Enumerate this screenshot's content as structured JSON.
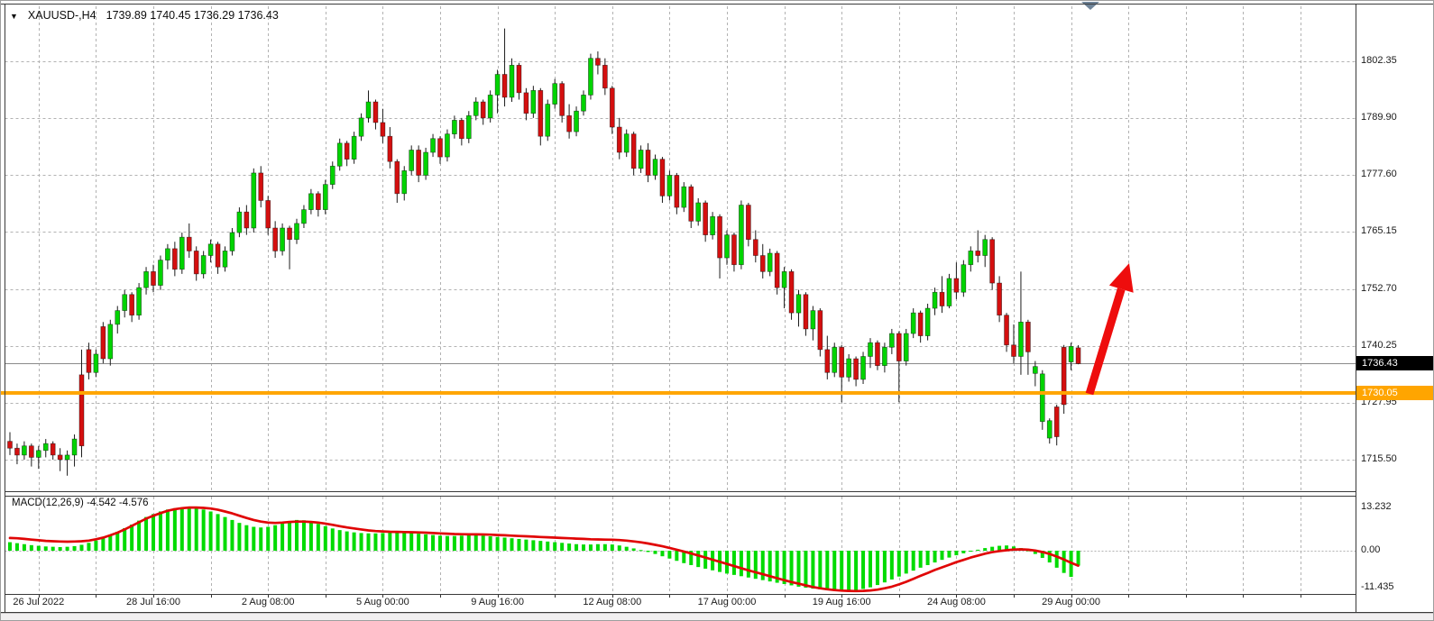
{
  "title": {
    "dropdown_icon": "▼",
    "symbol": "XAUUSD-,H4",
    "ohlc": "1739.89 1740.45 1736.29 1736.43"
  },
  "price_axis": {
    "labels": [
      "1802.35",
      "1789.90",
      "1777.60",
      "1765.15",
      "1752.70",
      "1740.25",
      "1727.95",
      "1715.50"
    ],
    "current_price_badge": "1736.43",
    "hline_badge": "1730.05"
  },
  "macd_panel": {
    "label": "MACD(12,26,9)",
    "values": "-4.542 -4.576",
    "axis_labels": [
      "13.232",
      "0.00",
      "-11.435"
    ]
  },
  "date_axis": {
    "labels": [
      {
        "text": "26 Jul 2022",
        "index": 4
      },
      {
        "text": "28 Jul 16:00",
        "index": 20
      },
      {
        "text": "2 Aug 08:00",
        "index": 36
      },
      {
        "text": "5 Aug 00:00",
        "index": 52
      },
      {
        "text": "9 Aug 16:00",
        "index": 68
      },
      {
        "text": "12 Aug 08:00",
        "index": 84
      },
      {
        "text": "17 Aug 00:00",
        "index": 100
      },
      {
        "text": "19 Aug 16:00",
        "index": 116
      },
      {
        "text": "24 Aug 08:00",
        "index": 132
      },
      {
        "text": "29 Aug 00:00",
        "index": 148
      }
    ]
  },
  "colors": {
    "bull": "#00D400",
    "bear": "#D40F0F",
    "wick": "#1c1c1c",
    "grid": "#b2b2b2",
    "border": "#3a3a3a",
    "orange_line": "#FFA500",
    "current_line": "#8a8a8a",
    "macd_hist": "#00DB00",
    "macd_signal": "#E00505",
    "arrow": "#EE0D0D",
    "shift_marker": "#6e8398",
    "badge_current_bg": "#000000",
    "badge_hline_bg": "#FFA500"
  },
  "chart_data": {
    "type": "candlestick",
    "symbol": "XAUUSD-",
    "timeframe": "H4",
    "title": "XAUUSD-,H4",
    "ohlc_current": {
      "open": 1739.89,
      "high": 1740.45,
      "low": 1736.29,
      "close": 1736.43
    },
    "price_gridlines": [
      1802.35,
      1789.9,
      1777.6,
      1765.15,
      1752.7,
      1740.25,
      1727.95,
      1715.5
    ],
    "horizontal_line": 1730.05,
    "current_price": 1736.43,
    "x_tick_step_bars": 8,
    "legend_position": "none",
    "candles": [
      [
        1719.5,
        1721.5,
        1716.5,
        1718.0
      ],
      [
        1718.0,
        1719.0,
        1714.5,
        1716.5
      ],
      [
        1716.5,
        1719.5,
        1715.5,
        1718.5
      ],
      [
        1718.5,
        1719.0,
        1714.0,
        1716.0
      ],
      [
        1716.0,
        1718.5,
        1713.5,
        1717.5
      ],
      [
        1717.5,
        1720.0,
        1716.0,
        1719.0
      ],
      [
        1719.0,
        1719.5,
        1715.5,
        1716.5
      ],
      [
        1716.5,
        1718.0,
        1713.0,
        1715.5
      ],
      [
        1715.5,
        1717.5,
        1712.0,
        1716.5
      ],
      [
        1716.5,
        1721.0,
        1714.0,
        1720.0
      ],
      [
        1734.0,
        1739.5,
        1716.0,
        1718.5
      ],
      [
        1739.5,
        1741.0,
        1733.0,
        1734.5
      ],
      [
        1734.5,
        1739.5,
        1733.5,
        1738.5
      ],
      [
        1744.5,
        1745.5,
        1736.5,
        1737.5
      ],
      [
        1737.5,
        1746.0,
        1736.0,
        1745.0
      ],
      [
        1745.0,
        1749.0,
        1743.0,
        1748.0
      ],
      [
        1748.0,
        1752.5,
        1746.5,
        1751.5
      ],
      [
        1751.5,
        1752.0,
        1745.5,
        1747.0
      ],
      [
        1747.0,
        1754.0,
        1746.0,
        1753.0
      ],
      [
        1753.0,
        1757.5,
        1751.5,
        1756.5
      ],
      [
        1756.5,
        1758.0,
        1752.0,
        1753.5
      ],
      [
        1753.5,
        1760.0,
        1752.5,
        1759.0
      ],
      [
        1759.0,
        1762.5,
        1757.0,
        1761.5
      ],
      [
        1761.5,
        1763.0,
        1755.5,
        1757.0
      ],
      [
        1757.0,
        1765.0,
        1756.0,
        1764.0
      ],
      [
        1764.0,
        1767.0,
        1759.5,
        1761.0
      ],
      [
        1761.0,
        1762.0,
        1754.5,
        1756.0
      ],
      [
        1756.0,
        1761.0,
        1755.0,
        1760.0
      ],
      [
        1760.0,
        1763.5,
        1758.5,
        1762.5
      ],
      [
        1762.5,
        1763.0,
        1756.0,
        1757.5
      ],
      [
        1757.5,
        1762.0,
        1756.5,
        1761.0
      ],
      [
        1761.0,
        1766.0,
        1760.0,
        1765.0
      ],
      [
        1765.0,
        1770.5,
        1764.0,
        1769.5
      ],
      [
        1769.5,
        1771.0,
        1764.5,
        1766.0
      ],
      [
        1766.0,
        1779.0,
        1765.0,
        1778.0
      ],
      [
        1778.0,
        1779.5,
        1770.5,
        1772.0
      ],
      [
        1772.0,
        1773.0,
        1764.5,
        1766.0
      ],
      [
        1766.0,
        1767.5,
        1759.5,
        1761.0
      ],
      [
        1761.0,
        1767.0,
        1760.0,
        1766.0
      ],
      [
        1766.0,
        1766.5,
        1757.0,
        1763.5
      ],
      [
        1763.5,
        1768.0,
        1762.5,
        1767.0
      ],
      [
        1767.0,
        1771.0,
        1766.0,
        1770.0
      ],
      [
        1770.0,
        1774.5,
        1769.0,
        1773.5
      ],
      [
        1773.5,
        1774.0,
        1768.5,
        1770.0
      ],
      [
        1770.0,
        1776.5,
        1769.0,
        1775.5
      ],
      [
        1775.5,
        1780.5,
        1774.5,
        1779.5
      ],
      [
        1779.5,
        1785.5,
        1778.5,
        1784.5
      ],
      [
        1784.5,
        1785.0,
        1779.5,
        1781.0
      ],
      [
        1781.0,
        1787.0,
        1780.0,
        1786.0
      ],
      [
        1786.0,
        1791.0,
        1785.0,
        1790.0
      ],
      [
        1790.0,
        1796.0,
        1789.0,
        1793.5
      ],
      [
        1793.5,
        1794.0,
        1787.5,
        1789.0
      ],
      [
        1789.0,
        1792.0,
        1784.5,
        1786.0
      ],
      [
        1786.0,
        1788.0,
        1779.0,
        1780.5
      ],
      [
        1780.5,
        1781.0,
        1771.5,
        1773.5
      ],
      [
        1773.5,
        1779.5,
        1772.0,
        1778.5
      ],
      [
        1778.5,
        1784.0,
        1777.5,
        1783.0
      ],
      [
        1783.0,
        1784.0,
        1776.0,
        1777.5
      ],
      [
        1777.5,
        1783.5,
        1776.5,
        1782.5
      ],
      [
        1782.5,
        1786.5,
        1781.5,
        1785.5
      ],
      [
        1785.5,
        1786.0,
        1780.0,
        1781.5
      ],
      [
        1781.5,
        1787.5,
        1780.5,
        1786.5
      ],
      [
        1786.5,
        1790.5,
        1785.5,
        1789.5
      ],
      [
        1789.5,
        1790.0,
        1784.0,
        1785.5
      ],
      [
        1785.5,
        1791.5,
        1784.5,
        1790.5
      ],
      [
        1790.5,
        1794.5,
        1789.5,
        1793.5
      ],
      [
        1793.5,
        1794.0,
        1788.5,
        1790.0
      ],
      [
        1790.0,
        1796.0,
        1789.0,
        1795.0
      ],
      [
        1795.0,
        1800.5,
        1791.0,
        1799.5
      ],
      [
        1799.5,
        1809.5,
        1792.5,
        1794.5
      ],
      [
        1794.5,
        1803.0,
        1793.5,
        1801.5
      ],
      [
        1801.5,
        1802.0,
        1794.0,
        1795.5
      ],
      [
        1795.5,
        1796.5,
        1789.5,
        1791.0
      ],
      [
        1791.0,
        1797.0,
        1790.0,
        1796.0
      ],
      [
        1796.0,
        1796.5,
        1784.0,
        1786.0
      ],
      [
        1786.0,
        1794.0,
        1785.0,
        1793.0
      ],
      [
        1793.0,
        1798.5,
        1792.0,
        1797.5
      ],
      [
        1797.5,
        1798.0,
        1789.0,
        1790.5
      ],
      [
        1790.5,
        1793.0,
        1785.5,
        1787.0
      ],
      [
        1787.0,
        1792.5,
        1786.0,
        1791.5
      ],
      [
        1791.5,
        1796.0,
        1790.5,
        1795.0
      ],
      [
        1795.0,
        1804.0,
        1794.0,
        1803.0
      ],
      [
        1803.0,
        1804.5,
        1799.5,
        1801.5
      ],
      [
        1801.5,
        1803.0,
        1795.0,
        1796.5
      ],
      [
        1796.5,
        1797.0,
        1786.5,
        1788.0
      ],
      [
        1788.0,
        1790.0,
        1781.0,
        1782.5
      ],
      [
        1782.5,
        1787.5,
        1781.5,
        1786.5
      ],
      [
        1786.5,
        1787.0,
        1777.5,
        1779.0
      ],
      [
        1779.0,
        1784.0,
        1778.0,
        1783.0
      ],
      [
        1783.0,
        1784.5,
        1776.0,
        1777.5
      ],
      [
        1777.5,
        1782.0,
        1776.5,
        1781.0
      ],
      [
        1781.0,
        1781.5,
        1771.5,
        1773.0
      ],
      [
        1773.0,
        1778.5,
        1772.0,
        1777.5
      ],
      [
        1777.5,
        1778.0,
        1769.0,
        1770.5
      ],
      [
        1770.5,
        1776.0,
        1769.5,
        1775.0
      ],
      [
        1775.0,
        1775.5,
        1766.0,
        1767.5
      ],
      [
        1767.5,
        1772.5,
        1766.5,
        1771.5
      ],
      [
        1771.5,
        1772.0,
        1763.0,
        1764.5
      ],
      [
        1764.5,
        1769.5,
        1763.5,
        1768.5
      ],
      [
        1768.5,
        1769.0,
        1755.0,
        1759.5
      ],
      [
        1759.5,
        1765.5,
        1758.0,
        1764.5
      ],
      [
        1764.5,
        1765.0,
        1756.5,
        1758.0
      ],
      [
        1758.0,
        1772.0,
        1757.0,
        1771.0
      ],
      [
        1771.0,
        1771.5,
        1762.0,
        1763.5
      ],
      [
        1763.5,
        1765.5,
        1758.5,
        1760.0
      ],
      [
        1760.0,
        1762.5,
        1755.0,
        1756.5
      ],
      [
        1756.5,
        1761.5,
        1755.5,
        1760.5
      ],
      [
        1760.5,
        1761.0,
        1751.5,
        1753.0
      ],
      [
        1753.0,
        1757.5,
        1748.5,
        1756.5
      ],
      [
        1756.5,
        1757.0,
        1746.0,
        1747.5
      ],
      [
        1747.5,
        1752.5,
        1744.5,
        1751.5
      ],
      [
        1751.5,
        1752.0,
        1742.5,
        1744.0
      ],
      [
        1744.0,
        1749.0,
        1741.5,
        1748.0
      ],
      [
        1748.0,
        1748.5,
        1738.0,
        1739.5
      ],
      [
        1739.5,
        1742.5,
        1733.0,
        1734.5
      ],
      [
        1734.5,
        1741.0,
        1733.5,
        1740.0
      ],
      [
        1740.0,
        1740.5,
        1728.0,
        1733.5
      ],
      [
        1733.5,
        1738.5,
        1732.5,
        1737.5
      ],
      [
        1737.5,
        1738.0,
        1731.5,
        1733.0
      ],
      [
        1733.0,
        1739.0,
        1732.0,
        1738.0
      ],
      [
        1738.0,
        1742.0,
        1735.5,
        1741.0
      ],
      [
        1741.0,
        1741.5,
        1735.0,
        1736.0
      ],
      [
        1736.0,
        1741.0,
        1734.5,
        1740.0
      ],
      [
        1740.0,
        1744.0,
        1738.5,
        1743.0
      ],
      [
        1743.0,
        1743.5,
        1728.0,
        1737.0
      ],
      [
        1737.0,
        1744.0,
        1736.0,
        1743.0
      ],
      [
        1743.0,
        1748.5,
        1742.0,
        1747.5
      ],
      [
        1747.5,
        1748.0,
        1741.0,
        1742.5
      ],
      [
        1742.5,
        1749.5,
        1741.5,
        1748.5
      ],
      [
        1748.5,
        1753.0,
        1747.0,
        1752.0
      ],
      [
        1752.0,
        1755.5,
        1747.5,
        1749.0
      ],
      [
        1749.0,
        1756.0,
        1748.5,
        1755.0
      ],
      [
        1755.0,
        1758.5,
        1750.5,
        1752.0
      ],
      [
        1752.0,
        1759.0,
        1751.0,
        1758.0
      ],
      [
        1758.0,
        1762.0,
        1756.5,
        1761.0
      ],
      [
        1761.0,
        1765.5,
        1758.5,
        1760.0
      ],
      [
        1760.0,
        1764.5,
        1757.5,
        1763.5
      ],
      [
        1763.5,
        1764.0,
        1752.5,
        1754.0
      ],
      [
        1754.0,
        1755.5,
        1745.5,
        1747.0
      ],
      [
        1747.0,
        1747.5,
        1739.0,
        1740.5
      ],
      [
        1740.5,
        1745.0,
        1736.5,
        1738.0
      ],
      [
        1738.0,
        1756.5,
        1734.0,
        1745.5
      ],
      [
        1745.5,
        1746.0,
        1734.0,
        1739.0
      ],
      [
        1734.3,
        1737.0,
        1731.5,
        1735.8
      ],
      [
        1723.8,
        1735.0,
        1722.0,
        1734.2
      ],
      [
        1720.2,
        1724.5,
        1719.0,
        1724.0
      ],
      [
        1727.0,
        1727.5,
        1718.6,
        1720.5
      ],
      [
        1740.0,
        1740.5,
        1725.5,
        1727.5
      ],
      [
        1736.8,
        1741.0,
        1735.0,
        1740.2
      ],
      [
        1739.89,
        1740.45,
        1736.29,
        1736.43
      ]
    ],
    "macd": {
      "params": [
        12,
        26,
        9
      ],
      "main_value": -4.542,
      "signal_value": -4.576,
      "axis": [
        13.232,
        0.0,
        -11.435
      ],
      "histogram": [
        2.6,
        2.3,
        2.0,
        1.7,
        1.5,
        1.3,
        1.2,
        1.1,
        1.2,
        1.4,
        1.8,
        2.4,
        3.1,
        3.9,
        4.8,
        5.8,
        6.9,
        8.0,
        9.2,
        10.3,
        11.2,
        12.0,
        12.6,
        13.0,
        13.2,
        13.2,
        13.0,
        12.6,
        12.0,
        11.2,
        10.3,
        9.4,
        8.5,
        7.8,
        7.3,
        7.1,
        7.3,
        7.8,
        8.5,
        9.1,
        9.4,
        9.3,
        8.9,
        8.2,
        7.5,
        6.8,
        6.3,
        5.9,
        5.6,
        5.4,
        5.3,
        5.3,
        5.4,
        5.5,
        5.6,
        5.5,
        5.4,
        5.2,
        5.0,
        4.8,
        4.6,
        4.5,
        4.5,
        4.6,
        4.7,
        4.7,
        4.6,
        4.4,
        4.2,
        4.0,
        3.8,
        3.6,
        3.4,
        3.2,
        3.0,
        2.8,
        2.6,
        2.4,
        2.2,
        2.0,
        1.9,
        1.9,
        2.0,
        2.0,
        1.9,
        1.6,
        1.2,
        0.7,
        0.2,
        -0.4,
        -1.0,
        -1.7,
        -2.4,
        -3.1,
        -3.8,
        -4.4,
        -5.0,
        -5.5,
        -6.0,
        -6.5,
        -7.0,
        -7.4,
        -7.8,
        -8.2,
        -8.6,
        -9.0,
        -9.4,
        -9.8,
        -10.2,
        -10.6,
        -11.0,
        -11.3,
        -11.6,
        -11.8,
        -12.0,
        -12.1,
        -12.2,
        -12.1,
        -12.0,
        -11.7,
        -11.2,
        -10.5,
        -9.7,
        -8.8,
        -7.9,
        -7.0,
        -6.1,
        -5.2,
        -4.4,
        -3.6,
        -2.8,
        -2.1,
        -1.4,
        -0.8,
        -0.2,
        0.3,
        0.8,
        1.2,
        1.5,
        1.6,
        1.3,
        0.8,
        0.1,
        -1.0,
        -2.2,
        -3.6,
        -5.2,
        -6.8,
        -8.0,
        -4.54
      ],
      "signal": [
        3.9,
        3.8,
        3.6,
        3.4,
        3.2,
        3.0,
        2.9,
        2.8,
        2.75,
        2.8,
        2.9,
        3.1,
        3.5,
        4.0,
        4.7,
        5.5,
        6.5,
        7.6,
        8.7,
        9.8,
        10.7,
        11.5,
        12.2,
        12.7,
        13.0,
        13.2,
        13.2,
        13.1,
        12.9,
        12.5,
        12.0,
        11.4,
        10.7,
        10.0,
        9.4,
        8.9,
        8.6,
        8.5,
        8.6,
        8.8,
        8.9,
        8.9,
        8.8,
        8.6,
        8.3,
        7.9,
        7.5,
        7.1,
        6.8,
        6.5,
        6.2,
        6.0,
        5.9,
        5.8,
        5.75,
        5.7,
        5.65,
        5.6,
        5.5,
        5.4,
        5.3,
        5.2,
        5.1,
        5.05,
        5.0,
        5.0,
        4.95,
        4.9,
        4.8,
        4.7,
        4.6,
        4.5,
        4.4,
        4.3,
        4.2,
        4.1,
        4.0,
        3.9,
        3.8,
        3.7,
        3.6,
        3.5,
        3.45,
        3.4,
        3.35,
        3.25,
        3.1,
        2.85,
        2.55,
        2.2,
        1.8,
        1.35,
        0.85,
        0.3,
        -0.25,
        -0.85,
        -1.45,
        -2.1,
        -2.75,
        -3.4,
        -4.05,
        -4.7,
        -5.35,
        -6.0,
        -6.6,
        -7.2,
        -7.8,
        -8.4,
        -9.0,
        -9.6,
        -10.1,
        -10.6,
        -11.1,
        -11.5,
        -11.8,
        -12.05,
        -12.2,
        -12.3,
        -12.35,
        -12.3,
        -12.15,
        -11.9,
        -11.5,
        -11.0,
        -10.3,
        -9.5,
        -8.6,
        -7.7,
        -6.8,
        -5.9,
        -5.1,
        -4.3,
        -3.5,
        -2.8,
        -2.1,
        -1.5,
        -0.9,
        -0.45,
        -0.1,
        0.15,
        0.35,
        0.4,
        0.3,
        0.05,
        -0.4,
        -1.0,
        -1.8,
        -2.7,
        -3.7,
        -4.576
      ]
    },
    "annotations": [
      {
        "type": "horizontal-line",
        "price": 1730.05,
        "color": "orange"
      },
      {
        "type": "arrow-up",
        "color": "red"
      }
    ]
  }
}
